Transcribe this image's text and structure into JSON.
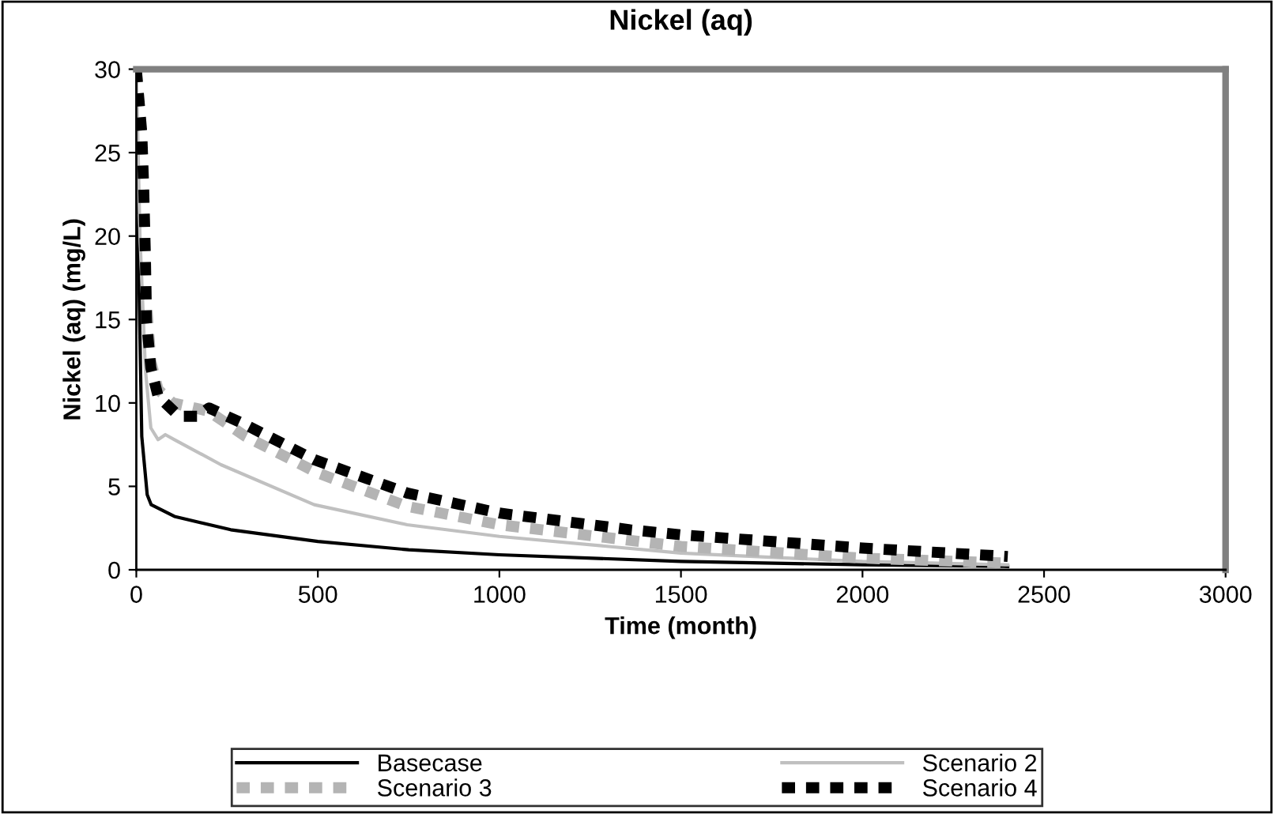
{
  "chart_data": {
    "type": "line",
    "title": "Nickel (aq)",
    "xlabel": "Time (month)",
    "ylabel": "Nickel (aq) (mg/L)",
    "xlim": [
      0,
      3000
    ],
    "xticks": [
      0,
      500,
      1000,
      1500,
      2000,
      2500,
      3000
    ],
    "ylim": [
      0,
      30
    ],
    "yticks": [
      0,
      5,
      10,
      15,
      20,
      25,
      30
    ],
    "grid": false,
    "legend": "bottom",
    "series": [
      {
        "name": "Basecase",
        "color": "#000000",
        "line_style": "solid",
        "x": [
          0,
          5,
          15,
          30,
          41,
          105,
          260,
          500,
          750,
          1000,
          1500,
          2000,
          2400
        ],
        "values": [
          30,
          20,
          8,
          4.5,
          3.9,
          3.2,
          2.4,
          1.7,
          1.2,
          0.9,
          0.5,
          0.3,
          0.2
        ]
      },
      {
        "name": "Scenario 2",
        "color": "#c0c0c0",
        "line_style": "solid",
        "x": [
          0,
          10,
          25,
          40,
          60,
          80,
          105,
          233,
          490,
          746,
          1000,
          1500,
          2000,
          2400
        ],
        "values": [
          30,
          20,
          12,
          8.5,
          7.8,
          8.1,
          7.8,
          6.3,
          3.9,
          2.7,
          2.0,
          1.0,
          0.5,
          0.3
        ]
      },
      {
        "name": "Scenario 3",
        "color": "#b4b4b4",
        "line_style": "dashed",
        "x": [
          0,
          10,
          20,
          28,
          40,
          60,
          100,
          200,
          300,
          500,
          746,
          1000,
          1500,
          2000,
          2400
        ],
        "values": [
          30,
          27,
          21,
          16,
          12.5,
          10.8,
          10,
          9.5,
          8.0,
          5.8,
          3.8,
          2.7,
          1.4,
          0.7,
          0.4
        ]
      },
      {
        "name": "Scenario 4",
        "color": "#000000",
        "line_style": "dashed",
        "x": [
          0,
          15,
          20,
          25,
          28,
          40,
          60,
          118,
          170,
          200,
          300,
          490,
          746,
          1000,
          1360,
          1500,
          2000,
          2400
        ],
        "values": [
          30,
          26.2,
          23.1,
          18.8,
          14.9,
          12.1,
          10.4,
          9.2,
          9.2,
          9.7,
          8.7,
          6.6,
          4.6,
          3.4,
          2.4,
          2.1,
          1.3,
          0.8
        ]
      }
    ]
  }
}
